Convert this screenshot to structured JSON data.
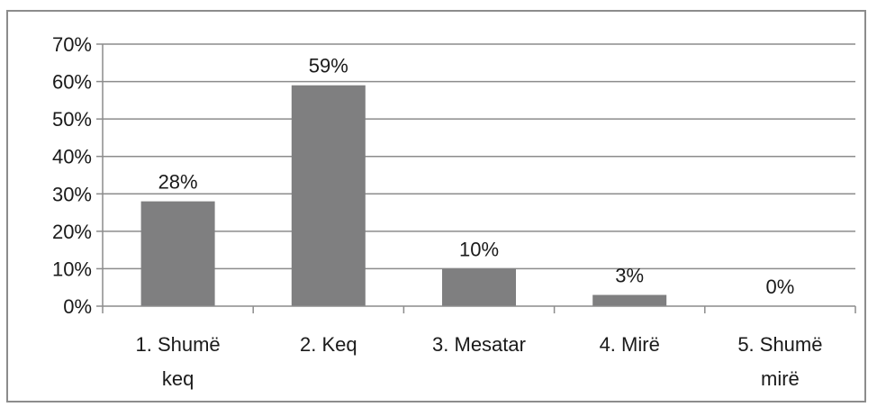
{
  "chart_data": {
    "type": "bar",
    "categories": [
      "1. Shumë keq",
      "2. Keq",
      "3. Mesatar",
      "4. Mirë",
      "5. Shumë mirë"
    ],
    "category_lines": [
      [
        "1. Shumë",
        "keq"
      ],
      [
        "2. Keq"
      ],
      [
        "3. Mesatar"
      ],
      [
        "4. Mirë"
      ],
      [
        "5. Shumë",
        "mirë"
      ]
    ],
    "values": [
      28,
      59,
      10,
      3,
      0
    ],
    "data_labels": [
      "28%",
      "59%",
      "10%",
      "3%",
      "0%"
    ],
    "ylim": [
      0,
      70
    ],
    "yticks": [
      0,
      10,
      20,
      30,
      40,
      50,
      60,
      70
    ],
    "ytick_labels": [
      "0%",
      "10%",
      "20%",
      "30%",
      "40%",
      "50%",
      "60%",
      "70%"
    ],
    "grid": true,
    "legend": "none",
    "bar_color": "#7f7f80",
    "grid_color": "#8c8c8c",
    "title": "",
    "xlabel": "",
    "ylabel": ""
  }
}
